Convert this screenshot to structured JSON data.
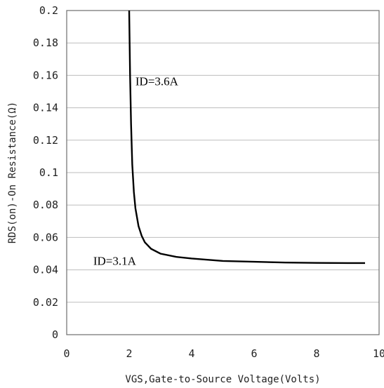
{
  "chart_data": {
    "type": "line",
    "title": "",
    "xlabel": "VGS,Gate-to-Source Voltage(Volts)",
    "ylabel": "RDS(on)-On Resistance(Ω)",
    "xlim": [
      0,
      10
    ],
    "ylim": [
      0,
      0.2
    ],
    "x_ticks": [
      "0",
      "2",
      "4",
      "6",
      "8",
      "10"
    ],
    "y_ticks": [
      "0",
      "0.02",
      "0.04",
      "0.06",
      "0.08",
      "0.1",
      "0.12",
      "0.14",
      "0.16",
      "0.18",
      "0.2"
    ],
    "grid": "horizontal",
    "series": [
      {
        "x": [
          2.0,
          2.03,
          2.06,
          2.1,
          2.15,
          2.2,
          2.3,
          2.4,
          2.5,
          2.7,
          3.0,
          3.5,
          4.0,
          5.0,
          6.0,
          7.0,
          8.0,
          9.0,
          9.55
        ],
        "y": [
          0.2,
          0.16,
          0.13,
          0.105,
          0.088,
          0.078,
          0.067,
          0.061,
          0.057,
          0.053,
          0.05,
          0.048,
          0.047,
          0.0455,
          0.045,
          0.0445,
          0.0443,
          0.0442,
          0.0442
        ]
      }
    ],
    "annotations": [
      {
        "text": "ID=3.6A",
        "x": 2.2,
        "y": 0.154
      },
      {
        "text": "ID=3.1A",
        "x": 0.85,
        "y": 0.043
      }
    ]
  }
}
